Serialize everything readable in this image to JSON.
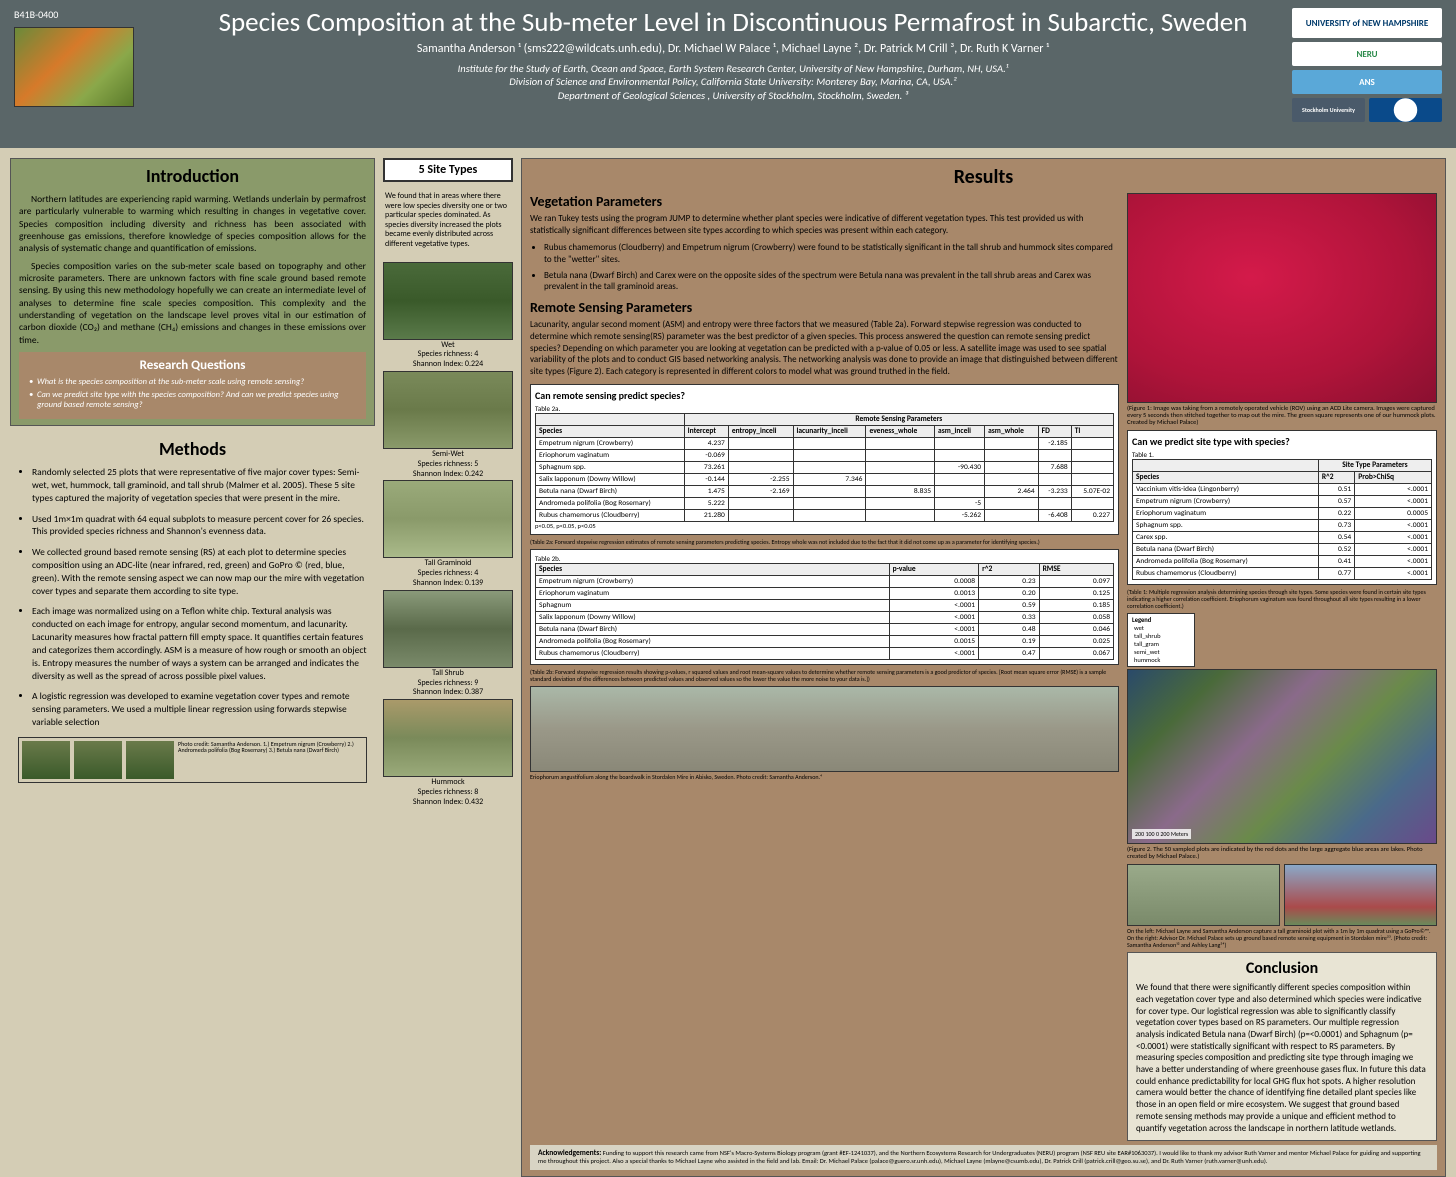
{
  "poster_number": "B41B-0400",
  "title": "Species Composition at the Sub-meter Level in Discontinuous Permafrost in Subarctic, Sweden",
  "authors": "Samantha Anderson ¹ (sms222@wildcats.unh.edu), Dr. Michael W Palace ¹, Michael Layne ², Dr. Patrick M Crill ³, Dr. Ruth K Varner ¹",
  "affiliations": [
    "Institute for the Study of Earth, Ocean and Space, Earth System Research Center, University of New Hampshire, Durham, NH, USA.¹",
    "Division of Science and Environmental Policy, California State University: Monterey Bay, Marina, CA, USA.²",
    "Department of Geological Sciences , University of Stockholm, Stockholm, Sweden. ³"
  ],
  "logos": [
    "UNIVERSITY of NEW HAMPSHIRE",
    "NERU",
    "ANS",
    "Stockholm University",
    "NSF"
  ],
  "introduction": {
    "title": "Introduction",
    "p1": "Northern latitudes are experiencing rapid warming. Wetlands underlain by permafrost are particularly vulnerable to warming which resulting in changes in vegetative cover. Species composition including diversity and richness has been associated with greenhouse gas emissions, therefore knowledge of species composition allows for the analysis of systematic change and quantification of emissions.",
    "p2": "Species composition varies on the sub-meter scale based on topography and other microsite parameters. There are unknown factors with fine scale ground based remote sensing. By using this new methodology hopefully we can create an intermediate level of analyses to determine fine scale species composition. This complexity and the understanding of vegetation on the landscape level proves vital in our estimation of carbon dioxide (CO₂) and methane (CH₄) emissions and changes in these emissions over time."
  },
  "research_questions": {
    "title": "Research Questions",
    "items": [
      "What is the species composition at the sub-meter scale using remote sensing?",
      "Can we predict site type with the species composition? And can we predict species using ground based remote sensing?"
    ]
  },
  "methods": {
    "title": "Methods",
    "items": [
      "Randomly selected 25 plots that were representative of five major cover types: Semi-wet, wet, hummock, tall graminoid, and tall shrub (Malmer et al. 2005). These 5 site types captured the majority of vegetation species that were present in the mire.",
      "Used 1m×1m quadrat with 64 equal subplots to measure percent cover for 26 species. This provided species richness and Shannon's evenness data.",
      "We collected ground based remote sensing (RS) at each plot to determine species composition using an ADC-lite (near infrared, red, green) and GoPro © (red, blue, green). With the remote sensing aspect we can now map our the mire with vegetation cover types and separate them according to site type.",
      "Each image was normalized using on a Teflon white chip. Textural analysis was conducted on each image for entropy, angular second momentum, and lacunarity. Lacunarity measures how fractal pattern fill empty space. It quantifies certain features and categorizes them accordingly. ASM is a measure of how rough or smooth an object is. Entropy measures the number of ways a system can be arranged and indicates the diversity as well as the spread of across possible pixel values.",
      "A logistic regression was developed to examine vegetation cover types and remote sensing parameters. We used a multiple linear regression using forwards stepwise variable selection"
    ],
    "thumb_caption": "Photo credit: Samantha Anderson. 1.) Empetrum nigrum (Crowberry) 2.) Andromeda polifolia (Bog Rosemary) 3.) Betula nana (Dwarf Birch)"
  },
  "site_types": {
    "header": "5 Site Types",
    "intro": "We found that in areas where there were low species diversity one or two particular species dominated. As species diversity increased the plots became evenly distributed across different vegetative types.",
    "sites": [
      {
        "name": "Wet",
        "richness": "Species richness: 4",
        "shannon": "Shannon Index: 0.224",
        "class": "site-wet"
      },
      {
        "name": "Semi-Wet",
        "richness": "Species richness: 5",
        "shannon": "Shannon Index: 0.242",
        "class": "site-semiwet"
      },
      {
        "name": "Tall Graminoid",
        "richness": "Species richness: 4",
        "shannon": "Shannon Index: 0.139",
        "class": "site-tallgram"
      },
      {
        "name": "Tall Shrub",
        "richness": "Species richness: 9",
        "shannon": "Shannon Index: 0.387",
        "class": "site-tallshrub"
      },
      {
        "name": "Hummock",
        "richness": "Species richness: 8",
        "shannon": "Shannon Index: 0.432",
        "class": "site-hummock"
      }
    ]
  },
  "results": {
    "title": "Results",
    "veg_params": {
      "title": "Vegetation Parameters",
      "text": "We ran Tukey tests using the program JUMP to determine whether plant species were indicative of different vegetation types. This test provided us with statistically significant differences between site types according to which species was present within each category.",
      "bullets": [
        "Rubus chamemorus (Cloudberry) and Empetrum nigrum (Crowberry) were found to be statistically significant in the tall shrub and hummock sites compared to the \"wetter\" sites.",
        "Betula nana (Dwarf Birch) and Carex were on the opposite sides of the spectrum were Betula nana was prevalent in the tall shrub areas and Carex was prevalent in the tall graminoid areas."
      ]
    },
    "rs_params": {
      "title": "Remote Sensing Parameters",
      "text": "Lacunarity, angular second moment (ASM) and entropy were three factors that we measured (Table 2a). Forward stepwise regression was conducted to determine which remote sensing(RS) parameter was the best predictor of a given species. This process answered the question can remote sensing predict species? Depending on which parameter you are looking at vegetation can be predicted with a p-value of 0.05 or less. A satellite image was used to see spatial variability of the plots and to conduct GIS based networking analysis. The networking analysis was done to provide an image that distinguished between different site types (Figure 2). Each category is represented in different colors to model what was ground truthed in the field."
    },
    "sat_caption": "(Figure 1: Image was taking from a remotely operated vehicle (ROV) using an ACD Lite camera. Images were captured every 5 seconds then stitched together to map out the mire. The green square represents one of our hummock plots. Created by Michael Palace)",
    "table1": {
      "title": "Can we predict site type with species?",
      "label": "Table 1.",
      "header_span": "Site Type Parameters",
      "columns": [
        "Species",
        "R^2",
        "Prob>ChiSq"
      ],
      "rows": [
        [
          "Vaccinium vitis-idea (Lingonberry)",
          "0.51",
          "<.0001"
        ],
        [
          "Empetrum nigrum (Crowberry)",
          "0.57",
          "<.0001"
        ],
        [
          "Eriophorum vaginatum",
          "0.22",
          "0.0005"
        ],
        [
          "Sphagnum spp.",
          "0.73",
          "<.0001"
        ],
        [
          "Carex spp.",
          "0.54",
          "<.0001"
        ],
        [
          "Betula nana (Dwarf Birch)",
          "0.52",
          "<.0001"
        ],
        [
          "Andromeda polifolia (Bog Rosemary)",
          "0.41",
          "<.0001"
        ],
        [
          "Rubus chamemorus (Cloudberry)",
          "0.77",
          "<.0001"
        ]
      ],
      "caption": "(Table 1: Multiple regression analysis determining species through site types. Some species were found in certain site types indicating a higher correlation coefficient. Eriophorum vaginatum was found throughout all site types resulting in a lower correlation coefficient.)"
    },
    "table2a": {
      "title": "Can remote sensing predict species?",
      "label": "Table 2a.",
      "header_span": "Remote Sensing Parameters",
      "columns": [
        "Species",
        "Intercept",
        "entropy_inceli",
        "lacunarity_inceli",
        "eveness_whole",
        "asm_inceli",
        "asm_whole",
        "FD",
        "TI"
      ],
      "rows": [
        [
          "Empetrum nigrum (Crowberry)",
          "4.237",
          "",
          "",
          "",
          "",
          "",
          "-2.185",
          ""
        ],
        [
          "Eriophorum vaginatum",
          "-0.069",
          "",
          "",
          "",
          "",
          "",
          "",
          ""
        ],
        [
          "Sphagnum spp.",
          "73.261",
          "",
          "",
          "",
          "-90.430",
          "",
          "7.688",
          ""
        ],
        [
          "Salix lapponum (Downy Willow)",
          "-0.144",
          "-2.255",
          "7.346",
          "",
          "",
          "",
          "",
          ""
        ],
        [
          "Betula nana (Dwarf Birch)",
          "1.475",
          "-2.169",
          "",
          "8.835",
          "",
          "2.464",
          "-3.233",
          "5.07E-02"
        ],
        [
          "Andromeda polifolia (Bog Rosemary)",
          "5.222",
          "",
          "",
          "",
          "-5",
          "",
          "",
          ""
        ],
        [
          "Rubus chamemorus (Cloudberry)",
          "21.280",
          "",
          "",
          "",
          "-5.262",
          "",
          "-6.408",
          "0.227"
        ]
      ],
      "footer": "p<0.05, p<0.05, p<0.05",
      "caption": "(Table 2a: Forward stepwise regression estimates of remote sensing parameters predicting species. Entropy whole was not included due to the fact that it did not come up as a parameter for identifying species.)"
    },
    "table2b": {
      "label": "Table 2b.",
      "columns": [
        "Species",
        "p-value",
        "r^2",
        "RMSE"
      ],
      "rows": [
        [
          "Empetrum nigrum (Crowberry)",
          "0.0008",
          "0.23",
          "0.097"
        ],
        [
          "Eriophorum vaginatum",
          "0.0013",
          "0.20",
          "0.125"
        ],
        [
          "Sphagnum",
          "<.0001",
          "0.59",
          "0.185"
        ],
        [
          "Salix lapponum (Downy Willow)",
          "<.0001",
          "0.33",
          "0.058"
        ],
        [
          "Betula nana (Dwarf Birch)",
          "<.0001",
          "0.48",
          "0.046"
        ],
        [
          "Andromeda polifolia (Bog Rosemary)",
          "0.0015",
          "0.19",
          "0.025"
        ],
        [
          "Rubus chamemorus (Cloudberry)",
          "<.0001",
          "0.47",
          "0.067"
        ]
      ],
      "caption": "(Table 2b: Forward stepwise regression results showing p-values, r squared values and root mean-square values to determine whether remote sensing parameters is a good predictor of species. [Root mean square error (RMSE) is a sample standard deviation of the differences between predicted values and observed values so the lower the value the more noise to your data is.])"
    },
    "legend": {
      "title": "Legend",
      "items": [
        "wet",
        "tall_shrub",
        "tall_gram",
        "semi_wet",
        "hummock"
      ]
    },
    "map_caption": "(Figure 2. The 50 sampled plots are indicated by the red dots and the large aggregate blue areas are lakes. Photo created by Michael Palace.)",
    "map_scale": "200  100  0        200 Meters",
    "field_caption": "On the left: Michael Layne and Samantha Anderson capture a tall graminoid plot with a 1m by 1m quadrat using a GoPro©™. On the right: Advisor Dr. Michael Palace sets up ground based remote sensing equipment in Stordalen mire²³. (Photo credit: Samantha Anderson¹² and Ashley Lang³⁴)",
    "boardwalk_caption": "Eriophorum angustifolium along the boardwalk in Stordalen Mire in Abisko, Sweden. Photo credit: Samantha Anderson.⁴"
  },
  "conclusion": {
    "title": "Conclusion",
    "text": "We found that there were significantly different species composition within each vegetation cover type and also determined which species were indicative for cover type. Our logistical regression was able to significantly classify vegetation cover types based on RS parameters. Our multiple regression analysis indicated Betula nana (Dwarf Birch) (p=<0.0001) and Sphagnum (p=<0.0001) were statistically significant with respect to RS parameters. By measuring species composition and predicting site type through imaging we have a better understanding of where greenhouse gases flux. In future this data could enhance predictability for local GHG flux hot spots. A higher resolution camera would better the chance of identifying fine detailed plant species like those in an open field or mire ecosystem. We suggest that ground based remote sensing methods may provide a unique and efficient method to quantify vegetation across the landscape in northern latitude wetlands."
  },
  "acknowledgements": {
    "label": "Acknowledgements:",
    "text": "Funding to support this research came from NSF's Macro-Systems Biology program (grant #EF-1241037), and the Northern Ecosystems Research for Undergraduates (NERU) program (NSF REU site EAR#1063037). I would like to thank my advisor Ruth Varner and mentor Michael Palace for guiding and supporting me throughout this project. Also a special thanks to Michael Layne who assisted in the field and lab. Email: Dr. Michael Palace (palace@guero.sr.unh.edu), Michael Layne (mlayne@csumb.edu), Dr. Patrick Crill (patrick.crill@geo.su.se), and Dr. Ruth Varner (ruth.varner@unh.edu)."
  }
}
